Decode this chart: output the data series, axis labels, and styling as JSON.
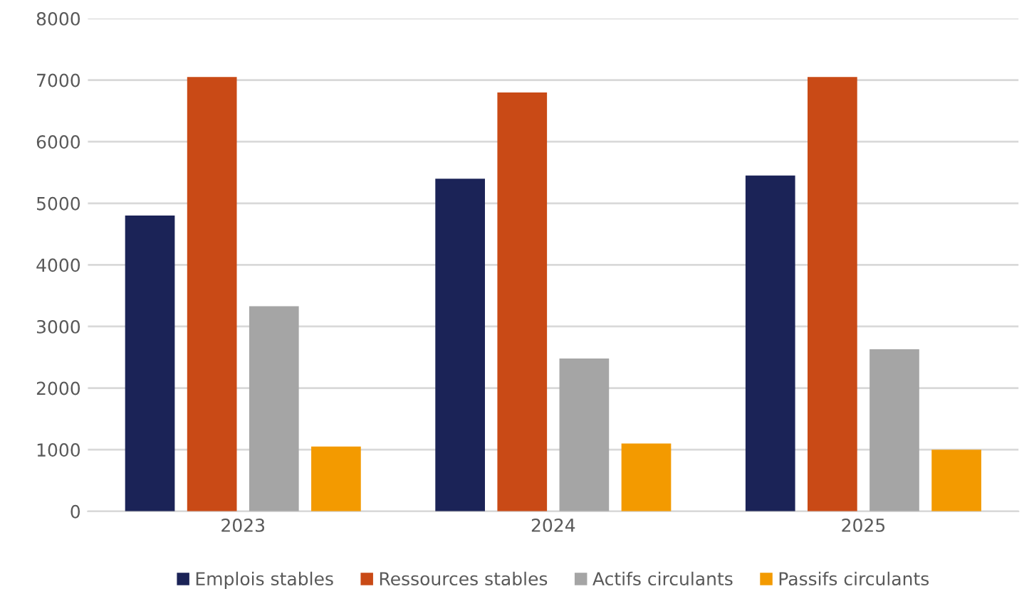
{
  "chart_data": {
    "type": "bar",
    "categories": [
      "2023",
      "2024",
      "2025"
    ],
    "series": [
      {
        "name": "Emplois stables",
        "color": "#1b2357",
        "values": [
          4800,
          5400,
          5450
        ]
      },
      {
        "name": "Ressources stables",
        "color": "#c94a16",
        "values": [
          7050,
          6800,
          7050
        ]
      },
      {
        "name": "Actifs circulants",
        "color": "#a5a5a5",
        "values": [
          3330,
          2480,
          2630
        ]
      },
      {
        "name": "Passifs circulants",
        "color": "#f39a00",
        "values": [
          1050,
          1100,
          1000
        ]
      }
    ],
    "ylim": [
      0,
      8000
    ],
    "yticks": [
      0,
      1000,
      2000,
      3000,
      4000,
      5000,
      6000,
      7000,
      8000
    ],
    "grid": "y",
    "legend": "bottom"
  }
}
